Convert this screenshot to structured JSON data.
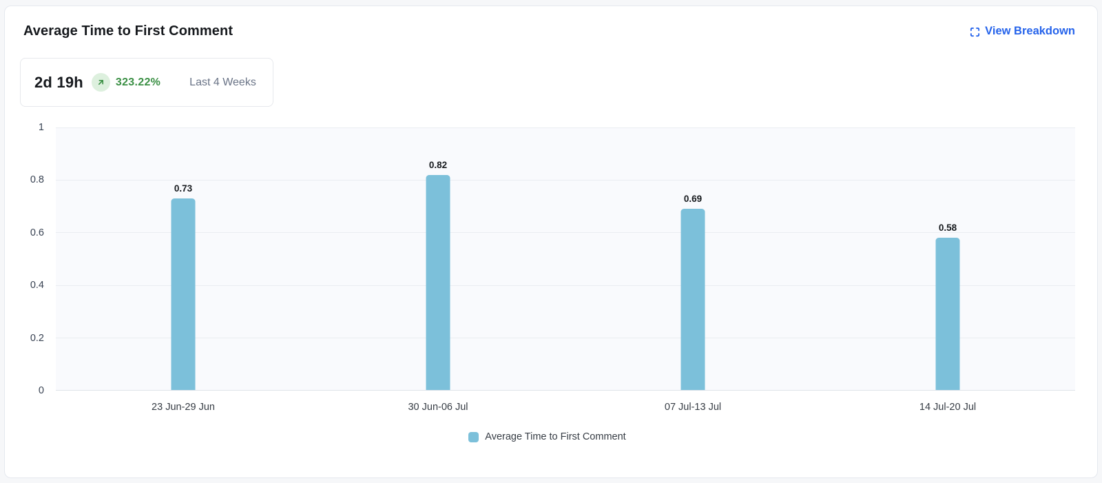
{
  "header": {
    "title": "Average Time to First Comment",
    "view_breakdown_label": "View Breakdown",
    "link_color": "#2563eb"
  },
  "summary": {
    "value": "2d 19h",
    "trend_direction": "up",
    "trend_pct": "323.22%",
    "trend_text_color": "#3a8f44",
    "trend_badge_bg": "#ddf0de",
    "period": "Last 4 Weeks"
  },
  "chart_data": {
    "type": "bar",
    "title": "Average Time to First Comment",
    "series_name": "Average Time to First Comment",
    "categories": [
      "23 Jun-29 Jun",
      "30 Jun-06 Jul",
      "07 Jul-13 Jul",
      "14 Jul-20 Jul"
    ],
    "values": [
      0.73,
      0.82,
      0.69,
      0.58
    ],
    "value_labels": [
      "0.73",
      "0.82",
      "0.69",
      "0.58"
    ],
    "xlabel": "",
    "ylabel": "",
    "ylim": [
      0,
      1
    ],
    "yticks": [
      0,
      0.2,
      0.4,
      0.6,
      0.8,
      1
    ],
    "grid": true,
    "legend_position": "bottom",
    "bar_color": "#7cc0da",
    "plot_bg": "#f9fafd",
    "grid_color": "#eaedf1"
  }
}
